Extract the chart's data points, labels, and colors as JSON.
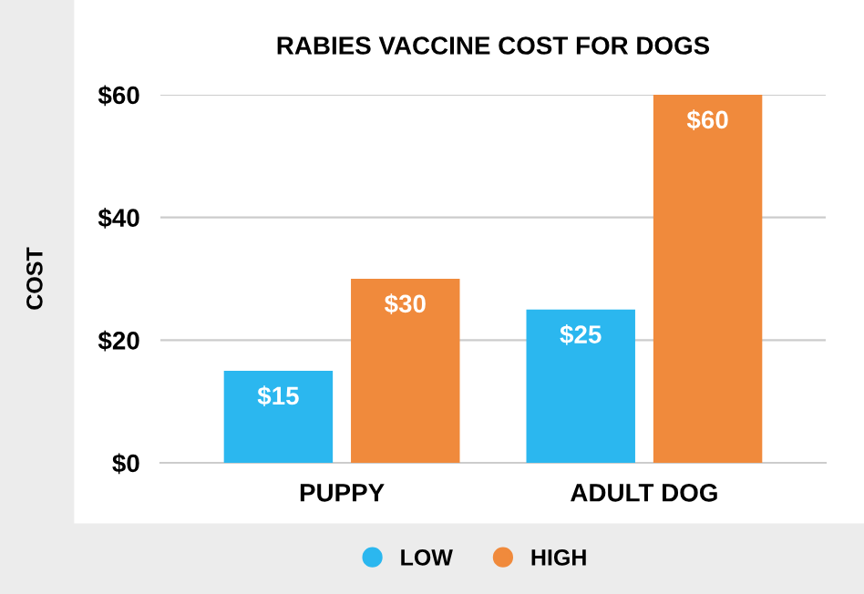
{
  "chart_data": {
    "type": "bar",
    "title": "RABIES VACCINE COST FOR DOGS",
    "ylabel": "COST",
    "categories": [
      "PUPPY",
      "ADULT DOG"
    ],
    "series": [
      {
        "name": "LOW",
        "color": "#2bb7ef",
        "values": [
          15,
          25
        ],
        "value_labels": [
          "$15",
          "$25"
        ]
      },
      {
        "name": "HIGH",
        "color": "#f08a3c",
        "values": [
          30,
          60
        ],
        "value_labels": [
          "$30",
          "$60"
        ]
      }
    ],
    "ylim": [
      0,
      60
    ],
    "yticks": [
      {
        "value": 0,
        "label": "$0"
      },
      {
        "value": 20,
        "label": "$20"
      },
      {
        "value": 40,
        "label": "$40"
      },
      {
        "value": 60,
        "label": "$60"
      }
    ],
    "grid": "y",
    "legend": "bottom"
  }
}
